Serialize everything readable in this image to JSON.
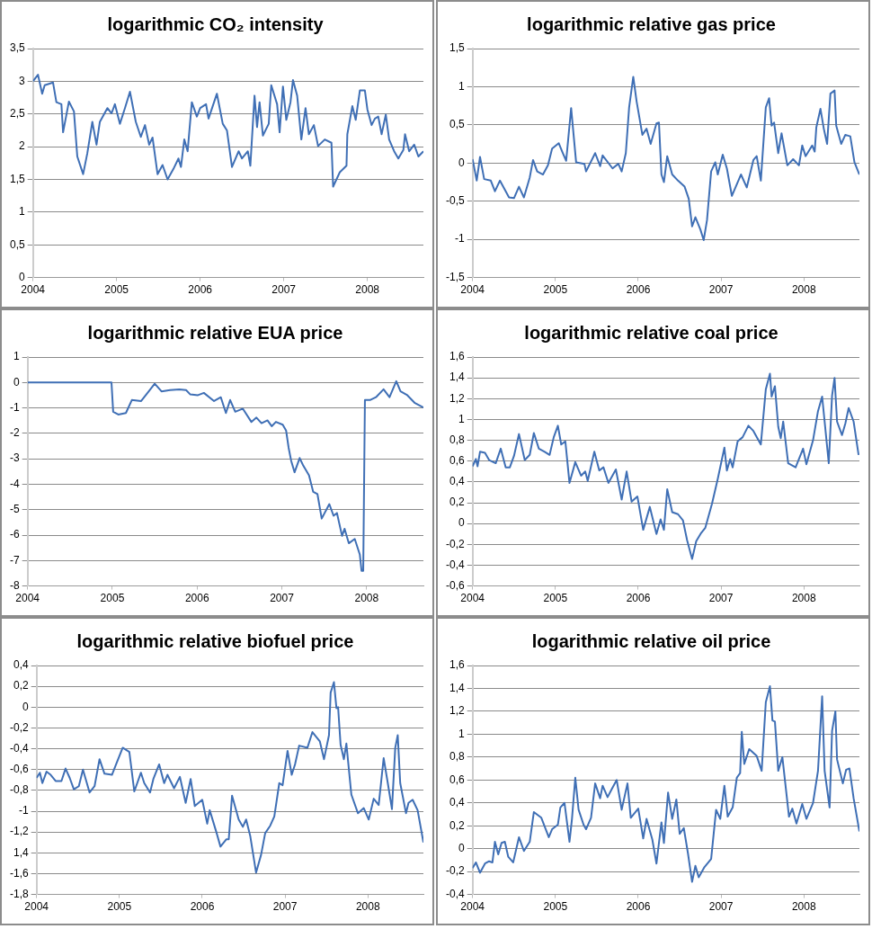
{
  "chart_data": [
    {
      "type": "line",
      "title": "logarithmic CO₂ intensity",
      "color": "#3f6fb5",
      "grid": "y",
      "xlim": [
        2004,
        2008.67
      ],
      "xticks": [
        2004,
        2005,
        2006,
        2007,
        2008
      ],
      "ylim": [
        0,
        3.5
      ],
      "yticks": [
        0,
        {
          "value": 0.5,
          "label": "0,5"
        },
        1,
        {
          "value": 1.5,
          "label": "1,5"
        },
        2,
        {
          "value": 2.5,
          "label": "2,5"
        },
        3,
        {
          "value": 3.5,
          "label": "3,5"
        }
      ],
      "x": [
        2004.0,
        2004.06,
        2004.11,
        2004.14,
        2004.24,
        2004.28,
        2004.34,
        2004.36,
        2004.43,
        2004.49,
        2004.53,
        2004.6,
        2004.65,
        2004.71,
        2004.76,
        2004.8,
        2004.89,
        2004.94,
        2004.98,
        2005.04,
        2005.1,
        2005.16,
        2005.23,
        2005.29,
        2005.34,
        2005.39,
        2005.43,
        2005.49,
        2005.55,
        2005.61,
        2005.68,
        2005.74,
        2005.77,
        2005.81,
        2005.85,
        2005.9,
        2005.96,
        2006.0,
        2006.07,
        2006.1,
        2006.2,
        2006.27,
        2006.32,
        2006.38,
        2006.46,
        2006.5,
        2006.57,
        2006.6,
        2006.65,
        2006.68,
        2006.71,
        2006.75,
        2006.82,
        2006.85,
        2006.92,
        2006.95,
        2006.99,
        2007.03,
        2007.08,
        2007.11,
        2007.16,
        2007.21,
        2007.26,
        2007.3,
        2007.36,
        2007.41,
        2007.49,
        2007.57,
        2007.59,
        2007.67,
        2007.75,
        2007.76,
        2007.82,
        2007.86,
        2007.91,
        2007.97,
        2008.0,
        2008.05,
        2008.09,
        2008.13,
        2008.17,
        2008.22,
        2008.26,
        2008.32,
        2008.37,
        2008.43,
        2008.45,
        2008.5,
        2008.56,
        2008.61,
        2008.67
      ],
      "values": [
        3.0,
        3.1,
        2.81,
        2.94,
        2.98,
        2.68,
        2.65,
        2.22,
        2.69,
        2.54,
        1.85,
        1.58,
        1.9,
        2.38,
        2.03,
        2.38,
        2.59,
        2.51,
        2.65,
        2.35,
        2.59,
        2.84,
        2.38,
        2.15,
        2.33,
        2.03,
        2.14,
        1.58,
        1.72,
        1.5,
        1.66,
        1.82,
        1.69,
        2.11,
        1.93,
        2.68,
        2.46,
        2.59,
        2.65,
        2.43,
        2.81,
        2.35,
        2.25,
        1.69,
        1.93,
        1.82,
        1.93,
        1.71,
        2.78,
        2.3,
        2.68,
        2.17,
        2.35,
        2.94,
        2.65,
        2.22,
        2.92,
        2.41,
        2.68,
        3.02,
        2.78,
        2.11,
        2.59,
        2.19,
        2.33,
        2.01,
        2.11,
        2.06,
        1.39,
        1.61,
        1.71,
        2.19,
        2.62,
        2.41,
        2.86,
        2.86,
        2.57,
        2.33,
        2.43,
        2.46,
        2.19,
        2.49,
        2.11,
        1.93,
        1.82,
        1.95,
        2.19,
        1.93,
        2.03,
        1.85,
        1.93
      ]
    },
    {
      "type": "line",
      "title": "logarithmic relative gas price",
      "color": "#3f6fb5",
      "grid": "y",
      "xlim": [
        2004,
        2008.67
      ],
      "xticks": [
        2004,
        2005,
        2006,
        2007,
        2008
      ],
      "ylim": [
        -1.5,
        1.5
      ],
      "yticks": [
        {
          "value": -1.5,
          "label": "-1,5"
        },
        -1,
        {
          "value": -0.5,
          "label": "-0,5"
        },
        0,
        {
          "value": 0.5,
          "label": "0,5"
        },
        1,
        {
          "value": 1.5,
          "label": "1,5"
        }
      ],
      "x": [
        2004.0,
        2004.05,
        2004.09,
        2004.14,
        2004.22,
        2004.27,
        2004.33,
        2004.39,
        2004.44,
        2004.5,
        2004.56,
        2004.62,
        2004.69,
        2004.73,
        2004.78,
        2004.85,
        2004.91,
        2004.96,
        2005.04,
        2005.09,
        2005.13,
        2005.19,
        2005.25,
        2005.35,
        2005.37,
        2005.48,
        2005.54,
        2005.57,
        2005.69,
        2005.76,
        2005.8,
        2005.85,
        2005.89,
        2005.94,
        2005.98,
        2006.05,
        2006.1,
        2006.15,
        2006.22,
        2006.25,
        2006.28,
        2006.31,
        2006.35,
        2006.41,
        2006.48,
        2006.56,
        2006.61,
        2006.65,
        2006.69,
        2006.75,
        2006.79,
        2006.83,
        2006.88,
        2006.93,
        2006.96,
        2007.02,
        2007.07,
        2007.13,
        2007.24,
        2007.31,
        2007.39,
        2007.43,
        2007.48,
        2007.54,
        2007.58,
        2007.61,
        2007.64,
        2007.69,
        2007.73,
        2007.8,
        2007.87,
        2007.94,
        2007.98,
        2008.02,
        2008.1,
        2008.13,
        2008.15,
        2008.2,
        2008.24,
        2008.28,
        2008.32,
        2008.37,
        2008.39,
        2008.45,
        2008.5,
        2008.56,
        2008.61,
        2008.67
      ],
      "values": [
        0.05,
        -0.23,
        0.08,
        -0.21,
        -0.23,
        -0.37,
        -0.23,
        -0.35,
        -0.45,
        -0.46,
        -0.31,
        -0.45,
        -0.19,
        0.04,
        -0.11,
        -0.15,
        -0.03,
        0.19,
        0.26,
        0.13,
        0.03,
        0.72,
        0.01,
        -0.01,
        -0.11,
        0.13,
        -0.04,
        0.1,
        -0.07,
        -0.01,
        -0.11,
        0.13,
        0.73,
        1.13,
        0.81,
        0.37,
        0.45,
        0.25,
        0.52,
        0.53,
        -0.15,
        -0.25,
        0.09,
        -0.15,
        -0.23,
        -0.31,
        -0.47,
        -0.83,
        -0.71,
        -0.87,
        -1.01,
        -0.75,
        -0.11,
        0.01,
        -0.15,
        0.11,
        -0.07,
        -0.43,
        -0.15,
        -0.32,
        0.04,
        0.09,
        -0.23,
        0.73,
        0.85,
        0.49,
        0.53,
        0.13,
        0.39,
        -0.03,
        0.05,
        -0.03,
        0.23,
        0.09,
        0.23,
        0.15,
        0.47,
        0.71,
        0.45,
        0.25,
        0.91,
        0.95,
        0.49,
        0.25,
        0.37,
        0.35,
        0.01,
        -0.15
      ]
    },
    {
      "type": "line",
      "title": "logarithmic relative EUA price",
      "color": "#3f6fb5",
      "grid": "y",
      "xlim": [
        2004,
        2008.67
      ],
      "xticks": [
        2004,
        2005,
        2006,
        2007,
        2008
      ],
      "ylim": [
        -8,
        1
      ],
      "yticks": [
        -8,
        -7,
        -6,
        -5,
        -4,
        -3,
        -2,
        -1,
        0,
        1
      ],
      "x": [
        2004.0,
        2004.99,
        2005.01,
        2005.07,
        2005.16,
        2005.23,
        2005.34,
        2005.43,
        2005.5,
        2005.58,
        2005.68,
        2005.79,
        2005.87,
        2005.92,
        2006.01,
        2006.08,
        2006.2,
        2006.28,
        2006.34,
        2006.39,
        2006.45,
        2006.54,
        2006.64,
        2006.7,
        2006.76,
        2006.83,
        2006.88,
        2006.93,
        2007.01,
        2007.05,
        2007.08,
        2007.11,
        2007.15,
        2007.21,
        2007.25,
        2007.32,
        2007.37,
        2007.42,
        2007.47,
        2007.56,
        2007.61,
        2007.65,
        2007.71,
        2007.74,
        2007.79,
        2007.86,
        2007.92,
        2007.94,
        2007.96,
        2007.98,
        2008.04,
        2008.11,
        2008.2,
        2008.27,
        2008.35,
        2008.4,
        2008.48,
        2008.57,
        2008.67
      ],
      "values": [
        0,
        0,
        -1.15,
        -1.26,
        -1.2,
        -0.69,
        -0.73,
        -0.35,
        -0.05,
        -0.35,
        -0.3,
        -0.27,
        -0.3,
        -0.47,
        -0.5,
        -0.41,
        -0.73,
        -0.58,
        -1.2,
        -0.69,
        -1.15,
        -1.03,
        -1.55,
        -1.38,
        -1.6,
        -1.49,
        -1.72,
        -1.55,
        -1.66,
        -1.89,
        -2.57,
        -3.08,
        -3.53,
        -2.97,
        -3.25,
        -3.65,
        -4.3,
        -4.39,
        -5.35,
        -4.78,
        -5.24,
        -5.13,
        -6.03,
        -5.75,
        -6.32,
        -6.15,
        -6.77,
        -7.4,
        -7.4,
        -0.69,
        -0.69,
        -0.58,
        -0.27,
        -0.58,
        0.05,
        -0.35,
        -0.5,
        -0.81,
        -0.98
      ]
    },
    {
      "type": "line",
      "title": "logarithmic relative coal price",
      "color": "#3f6fb5",
      "grid": "y",
      "xlim": [
        2004,
        2008.67
      ],
      "xticks": [
        2004,
        2005,
        2006,
        2007,
        2008
      ],
      "ylim": [
        -0.6,
        1.6
      ],
      "yticks": [
        {
          "value": -0.6,
          "label": "-0,6"
        },
        {
          "value": -0.4,
          "label": "-0,4"
        },
        {
          "value": -0.2,
          "label": "-0,2"
        },
        0,
        {
          "value": 0.2,
          "label": "0,2"
        },
        {
          "value": 0.4,
          "label": "0,4"
        },
        {
          "value": 0.6,
          "label": "0,6"
        },
        {
          "value": 0.8,
          "label": "0,8"
        },
        1,
        {
          "value": 1.2,
          "label": "1,2"
        },
        {
          "value": 1.4,
          "label": "1,4"
        },
        {
          "value": 1.6,
          "label": "1,6"
        }
      ],
      "x": [
        2004.0,
        2004.04,
        2004.06,
        2004.09,
        2004.15,
        2004.2,
        2004.28,
        2004.34,
        2004.4,
        2004.45,
        2004.5,
        2004.56,
        2004.63,
        2004.69,
        2004.74,
        2004.8,
        2004.87,
        2004.93,
        2004.98,
        2005.03,
        2005.07,
        2005.12,
        2005.17,
        2005.24,
        2005.31,
        2005.36,
        2005.39,
        2005.47,
        2005.53,
        2005.58,
        2005.64,
        2005.73,
        2005.8,
        2005.86,
        2005.92,
        2005.99,
        2006.06,
        2006.14,
        2006.22,
        2006.27,
        2006.31,
        2006.35,
        2006.41,
        2006.48,
        2006.54,
        2006.59,
        2006.65,
        2006.7,
        2006.76,
        2006.81,
        2006.89,
        2006.96,
        2007.04,
        2007.07,
        2007.11,
        2007.14,
        2007.2,
        2007.26,
        2007.33,
        2007.39,
        2007.48,
        2007.54,
        2007.59,
        2007.61,
        2007.65,
        2007.69,
        2007.72,
        2007.75,
        2007.81,
        2007.9,
        2007.99,
        2008.03,
        2008.11,
        2008.17,
        2008.22,
        2008.25,
        2008.3,
        2008.34,
        2008.37,
        2008.4,
        2008.46,
        2008.5,
        2008.54,
        2008.6,
        2008.66
      ],
      "values": [
        0.55,
        0.62,
        0.55,
        0.69,
        0.68,
        0.61,
        0.58,
        0.72,
        0.54,
        0.54,
        0.65,
        0.86,
        0.61,
        0.66,
        0.87,
        0.72,
        0.69,
        0.66,
        0.83,
        0.94,
        0.76,
        0.79,
        0.39,
        0.59,
        0.46,
        0.5,
        0.41,
        0.69,
        0.51,
        0.54,
        0.39,
        0.52,
        0.23,
        0.5,
        0.21,
        0.26,
        -0.06,
        0.16,
        -0.1,
        0.04,
        -0.06,
        0.33,
        0.11,
        0.09,
        0.03,
        -0.16,
        -0.34,
        -0.17,
        -0.09,
        -0.04,
        0.19,
        0.43,
        0.73,
        0.51,
        0.62,
        0.54,
        0.79,
        0.83,
        0.94,
        0.89,
        0.76,
        1.29,
        1.44,
        1.22,
        1.32,
        0.93,
        0.82,
        0.98,
        0.58,
        0.54,
        0.72,
        0.57,
        0.8,
        1.08,
        1.22,
        0.98,
        0.58,
        1.23,
        1.4,
        0.98,
        0.85,
        0.96,
        1.11,
        0.98,
        0.66
      ]
    },
    {
      "type": "line",
      "title": "logarithmic relative biofuel price",
      "color": "#3f6fb5",
      "grid": "y",
      "xlim": [
        2004,
        2008.67
      ],
      "xticks": [
        2004,
        2005,
        2006,
        2007,
        2008
      ],
      "ylim": [
        -1.8,
        0.4
      ],
      "yticks": [
        {
          "value": -1.8,
          "label": "-1,8"
        },
        {
          "value": -1.6,
          "label": "-1,6"
        },
        {
          "value": -1.4,
          "label": "1,4"
        },
        {
          "value": -1.2,
          "label": "-1,2"
        },
        -1,
        {
          "value": -0.8,
          "label": "-0,8"
        },
        {
          "value": -0.6,
          "label": "-0,6"
        },
        {
          "value": -0.4,
          "label": "-0,4"
        },
        {
          "value": -0.2,
          "label": "-0,2"
        },
        0,
        {
          "value": 0.2,
          "label": "0,2"
        },
        {
          "value": 0.4,
          "label": "0,4"
        }
      ],
      "x": [
        2004.0,
        2004.04,
        2004.07,
        2004.12,
        2004.17,
        2004.23,
        2004.3,
        2004.35,
        2004.4,
        2004.45,
        2004.51,
        2004.56,
        2004.64,
        2004.7,
        2004.76,
        2004.82,
        2004.91,
        2004.96,
        2005.04,
        2005.12,
        2005.18,
        2005.26,
        2005.3,
        2005.37,
        2005.41,
        2005.48,
        2005.54,
        2005.58,
        2005.66,
        2005.73,
        2005.8,
        2005.86,
        2005.91,
        2006.0,
        2006.06,
        2006.09,
        2006.17,
        2006.22,
        2006.29,
        2006.32,
        2006.36,
        2006.44,
        2006.49,
        2006.53,
        2006.58,
        2006.65,
        2006.71,
        2006.76,
        2006.82,
        2006.87,
        2006.93,
        2006.97,
        2007.03,
        2007.08,
        2007.12,
        2007.17,
        2007.27,
        2007.33,
        2007.42,
        2007.47,
        2007.53,
        2007.55,
        2007.59,
        2007.62,
        2007.64,
        2007.67,
        2007.71,
        2007.74,
        2007.8,
        2007.88,
        2007.95,
        2008.01,
        2008.07,
        2008.13,
        2008.19,
        2008.24,
        2008.29,
        2008.33,
        2008.36,
        2008.39,
        2008.46,
        2008.49,
        2008.54,
        2008.6,
        2008.67
      ],
      "values": [
        -0.68,
        -0.63,
        -0.73,
        -0.62,
        -0.65,
        -0.71,
        -0.71,
        -0.59,
        -0.68,
        -0.79,
        -0.76,
        -0.6,
        -0.82,
        -0.76,
        -0.5,
        -0.64,
        -0.65,
        -0.55,
        -0.39,
        -0.43,
        -0.81,
        -0.63,
        -0.73,
        -0.82,
        -0.69,
        -0.55,
        -0.73,
        -0.65,
        -0.78,
        -0.67,
        -0.92,
        -0.69,
        -0.95,
        -0.89,
        -1.12,
        -0.99,
        -1.2,
        -1.34,
        -1.27,
        -1.27,
        -0.85,
        -1.08,
        -1.15,
        -1.08,
        -1.24,
        -1.59,
        -1.42,
        -1.21,
        -1.14,
        -1.05,
        -0.73,
        -0.75,
        -0.42,
        -0.65,
        -0.55,
        -0.37,
        -0.39,
        -0.24,
        -0.33,
        -0.5,
        -0.27,
        0.14,
        0.24,
        -0.01,
        0,
        -0.36,
        -0.5,
        -0.35,
        -0.84,
        -1.02,
        -0.97,
        -1.08,
        -0.88,
        -0.94,
        -0.49,
        -0.73,
        -0.98,
        -0.39,
        -0.27,
        -0.73,
        -1.02,
        -0.92,
        -0.89,
        -0.99,
        -1.3
      ]
    },
    {
      "type": "line",
      "title": "logarithmic relative oil price",
      "color": "#3f6fb5",
      "grid": "y",
      "xlim": [
        2004,
        2008.67
      ],
      "xticks": [
        2004,
        2005,
        2006,
        2007,
        2008
      ],
      "ylim": [
        -0.4,
        1.6
      ],
      "yticks": [
        {
          "value": -0.4,
          "label": "-0,4"
        },
        {
          "value": -0.2,
          "label": "-0,2"
        },
        0,
        {
          "value": 0.2,
          "label": "0,2"
        },
        {
          "value": 0.4,
          "label": "0,4"
        },
        {
          "value": 0.6,
          "label": "0,6"
        },
        {
          "value": 0.8,
          "label": "0,8"
        },
        1,
        {
          "value": 1.2,
          "label": "1,2"
        },
        {
          "value": 1.4,
          "label": "1,4"
        },
        {
          "value": 1.6,
          "label": "1,6"
        }
      ],
      "x": [
        2004.0,
        2004.04,
        2004.09,
        2004.15,
        2004.2,
        2004.24,
        2004.27,
        2004.31,
        2004.35,
        2004.39,
        2004.43,
        2004.49,
        2004.56,
        2004.62,
        2004.69,
        2004.74,
        2004.83,
        2004.92,
        2004.96,
        2005.03,
        2005.06,
        2005.11,
        2005.17,
        2005.2,
        2005.24,
        2005.28,
        2005.34,
        2005.37,
        2005.43,
        2005.48,
        2005.54,
        2005.57,
        2005.63,
        2005.68,
        2005.74,
        2005.8,
        2005.87,
        2005.91,
        2006.0,
        2006.06,
        2006.1,
        2006.17,
        2006.22,
        2006.28,
        2006.31,
        2006.36,
        2006.41,
        2006.46,
        2006.5,
        2006.55,
        2006.6,
        2006.65,
        2006.69,
        2006.73,
        2006.8,
        2006.88,
        2006.94,
        2006.99,
        2007.04,
        2007.08,
        2007.14,
        2007.19,
        2007.23,
        2007.25,
        2007.28,
        2007.34,
        2007.43,
        2007.49,
        2007.54,
        2007.59,
        2007.62,
        2007.65,
        2007.69,
        2007.74,
        2007.82,
        2007.86,
        2007.91,
        2007.98,
        2008.03,
        2008.11,
        2008.17,
        2008.22,
        2008.25,
        2008.31,
        2008.34,
        2008.38,
        2008.4,
        2008.47,
        2008.51,
        2008.55,
        2008.6,
        2008.67
      ],
      "values": [
        -0.17,
        -0.12,
        -0.21,
        -0.13,
        -0.11,
        -0.12,
        0.06,
        -0.05,
        0.05,
        0.06,
        -0.07,
        -0.12,
        0.1,
        -0.02,
        0.06,
        0.32,
        0.27,
        0.1,
        0.17,
        0.21,
        0.36,
        0.4,
        0.06,
        0.26,
        0.62,
        0.34,
        0.21,
        0.17,
        0.27,
        0.57,
        0.44,
        0.55,
        0.45,
        0.52,
        0.6,
        0.34,
        0.57,
        0.27,
        0.35,
        0.09,
        0.26,
        0.08,
        -0.13,
        0.23,
        0.05,
        0.49,
        0.26,
        0.43,
        0.13,
        0.18,
        -0.04,
        -0.29,
        -0.15,
        -0.25,
        -0.16,
        -0.09,
        0.34,
        0.26,
        0.55,
        0.28,
        0.36,
        0.62,
        0.66,
        1.02,
        0.74,
        0.87,
        0.81,
        0.68,
        1.28,
        1.42,
        1.12,
        1.11,
        0.68,
        0.8,
        0.28,
        0.35,
        0.22,
        0.39,
        0.26,
        0.4,
        0.68,
        1.33,
        0.68,
        0.36,
        1.03,
        1.2,
        0.78,
        0.57,
        0.69,
        0.7,
        0.44,
        0.15
      ]
    }
  ]
}
